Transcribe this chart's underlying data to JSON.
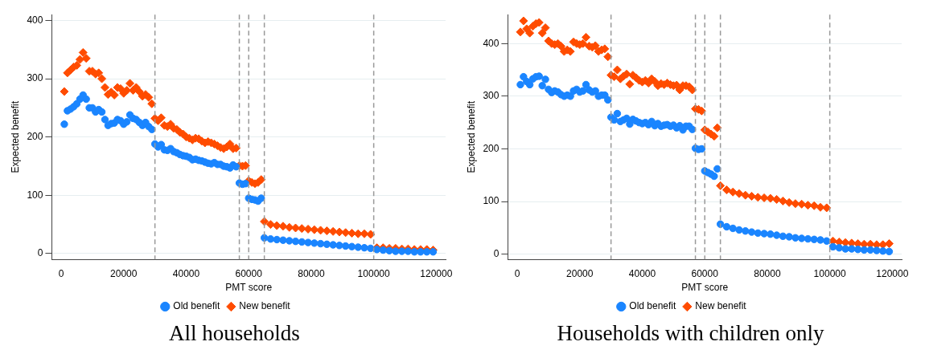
{
  "chart_data": [
    {
      "type": "scatter",
      "title": "All households",
      "xlabel": "PMT score",
      "ylabel": "Expected benefit",
      "xlim": [
        -3000,
        123000
      ],
      "xticks": [
        0,
        20000,
        40000,
        60000,
        80000,
        100000,
        120000
      ],
      "ylim": [
        -10,
        410
      ],
      "yticks": [
        0,
        100,
        200,
        300,
        400
      ],
      "grid": "y",
      "legend": "bottom",
      "x": [
        1000,
        2000,
        3000,
        4000,
        5000,
        6000,
        7000,
        8000,
        9000,
        10000,
        11000,
        12000,
        13000,
        14000,
        15000,
        16000,
        17000,
        18000,
        19000,
        20000,
        21000,
        22000,
        23000,
        24000,
        25000,
        26000,
        27000,
        28000,
        29000,
        30000,
        31000,
        32000,
        33000,
        34000,
        35000,
        36000,
        37000,
        38000,
        39000,
        40000,
        41000,
        42000,
        43000,
        44000,
        45000,
        46000,
        47000,
        48000,
        49000,
        50000,
        51000,
        52000,
        53000,
        54000,
        55000,
        56000,
        57000,
        58000,
        59000,
        60000,
        61000,
        62000,
        63000,
        64000,
        65000,
        67000,
        69000,
        71000,
        73000,
        75000,
        77000,
        79000,
        81000,
        83000,
        85000,
        87000,
        89000,
        91000,
        93000,
        95000,
        97000,
        99000,
        101000,
        103000,
        105000,
        107000,
        109000,
        111000,
        113000,
        115000,
        117000,
        119000
      ],
      "ref_lines": [
        {
          "axis": "x",
          "value": 30000,
          "color": "#999999",
          "line_style": "dashed"
        },
        {
          "axis": "x",
          "value": 57000,
          "color": "#999999",
          "line_style": "dashed"
        },
        {
          "axis": "x",
          "value": 60000,
          "color": "#999999",
          "line_style": "dashed"
        },
        {
          "axis": "x",
          "value": 65000,
          "color": "#999999",
          "line_style": "dashed"
        },
        {
          "axis": "x",
          "value": 100000,
          "color": "#999999",
          "line_style": "dashed"
        }
      ],
      "series": [
        {
          "name": "Old benefit",
          "color": "#1a85ff",
          "marker": "circle",
          "values": [
            222,
            245,
            248,
            252,
            257,
            265,
            272,
            265,
            250,
            250,
            243,
            247,
            243,
            230,
            220,
            223,
            224,
            230,
            228,
            222,
            226,
            238,
            232,
            230,
            225,
            220,
            225,
            218,
            213,
            188,
            183,
            187,
            178,
            177,
            180,
            175,
            173,
            170,
            168,
            167,
            165,
            161,
            162,
            160,
            159,
            157,
            155,
            154,
            156,
            153,
            153,
            150,
            149,
            147,
            152,
            149,
            121,
            119,
            120,
            95,
            93,
            92,
            90,
            95,
            27,
            25,
            24,
            23,
            22,
            21,
            20,
            19,
            18,
            17,
            16,
            15,
            14,
            13,
            12,
            11,
            10,
            9,
            7,
            6,
            5,
            4,
            4,
            4,
            3,
            3,
            3,
            3
          ]
        },
        {
          "name": "New benefit",
          "color": "#ff4c00",
          "marker": "diamond",
          "values": [
            278,
            310,
            315,
            320,
            323,
            333,
            345,
            335,
            313,
            313,
            308,
            310,
            300,
            285,
            273,
            277,
            272,
            285,
            283,
            275,
            280,
            292,
            280,
            285,
            278,
            270,
            273,
            268,
            257,
            232,
            228,
            233,
            220,
            218,
            222,
            215,
            213,
            208,
            205,
            200,
            198,
            195,
            198,
            197,
            193,
            190,
            192,
            190,
            188,
            185,
            182,
            180,
            183,
            188,
            180,
            181,
            151,
            150,
            151,
            125,
            122,
            120,
            122,
            127,
            55,
            50,
            48,
            47,
            45,
            44,
            43,
            42,
            41,
            40,
            39,
            38,
            37,
            36,
            35,
            34,
            34,
            33,
            10,
            10,
            9,
            9,
            8,
            8,
            7,
            7,
            7,
            6
          ]
        }
      ]
    },
    {
      "type": "scatter",
      "title": "Households with children only",
      "xlabel": "PMT score",
      "ylabel": "Expected benefit",
      "xlim": [
        -3000,
        123000
      ],
      "xticks": [
        0,
        20000,
        40000,
        60000,
        80000,
        100000,
        120000
      ],
      "ylim": [
        -10,
        455
      ],
      "yticks": [
        0,
        100,
        200,
        300,
        400
      ],
      "grid": "y",
      "legend": "bottom",
      "x": [
        1000,
        2000,
        3000,
        4000,
        5000,
        6000,
        7000,
        8000,
        9000,
        10000,
        11000,
        12000,
        13000,
        14000,
        15000,
        16000,
        17000,
        18000,
        19000,
        20000,
        21000,
        22000,
        23000,
        24000,
        25000,
        26000,
        27000,
        28000,
        29000,
        30000,
        31000,
        32000,
        33000,
        34000,
        35000,
        36000,
        37000,
        38000,
        39000,
        40000,
        41000,
        42000,
        43000,
        44000,
        45000,
        46000,
        47000,
        48000,
        49000,
        50000,
        51000,
        52000,
        53000,
        54000,
        55000,
        56000,
        57000,
        58000,
        59000,
        60000,
        61000,
        62000,
        63000,
        64000,
        65000,
        67000,
        69000,
        71000,
        73000,
        75000,
        77000,
        79000,
        81000,
        83000,
        85000,
        87000,
        89000,
        91000,
        93000,
        95000,
        97000,
        99000,
        101000,
        103000,
        105000,
        107000,
        109000,
        111000,
        113000,
        115000,
        117000,
        119000
      ],
      "ref_lines": [
        {
          "axis": "x",
          "value": 30000,
          "color": "#999999",
          "line_style": "dashed"
        },
        {
          "axis": "x",
          "value": 57000,
          "color": "#999999",
          "line_style": "dashed"
        },
        {
          "axis": "x",
          "value": 60000,
          "color": "#999999",
          "line_style": "dashed"
        },
        {
          "axis": "x",
          "value": 65000,
          "color": "#999999",
          "line_style": "dashed"
        },
        {
          "axis": "x",
          "value": 100000,
          "color": "#999999",
          "line_style": "dashed"
        }
      ],
      "series": [
        {
          "name": "Old benefit",
          "color": "#1a85ff",
          "marker": "circle",
          "values": [
            322,
            337,
            328,
            322,
            333,
            337,
            338,
            320,
            332,
            313,
            307,
            310,
            308,
            303,
            300,
            302,
            300,
            310,
            313,
            308,
            310,
            322,
            312,
            308,
            310,
            300,
            302,
            302,
            293,
            260,
            255,
            267,
            252,
            255,
            258,
            247,
            256,
            253,
            250,
            248,
            250,
            246,
            252,
            244,
            248,
            243,
            245,
            246,
            243,
            245,
            240,
            244,
            236,
            243,
            243,
            237,
            201,
            199,
            200,
            158,
            155,
            152,
            148,
            162,
            57,
            52,
            49,
            46,
            44,
            42,
            40,
            39,
            38,
            36,
            34,
            33,
            31,
            30,
            29,
            28,
            27,
            25,
            14,
            12,
            10,
            10,
            9,
            8,
            8,
            7,
            6,
            5
          ]
        },
        {
          "name": "New benefit",
          "color": "#ff4c00",
          "marker": "diamond",
          "values": [
            422,
            443,
            428,
            420,
            433,
            438,
            440,
            420,
            430,
            405,
            400,
            398,
            400,
            395,
            385,
            388,
            385,
            403,
            400,
            398,
            400,
            412,
            395,
            393,
            396,
            385,
            388,
            390,
            375,
            340,
            337,
            350,
            333,
            338,
            342,
            323,
            340,
            335,
            330,
            327,
            330,
            325,
            333,
            328,
            320,
            324,
            322,
            325,
            322,
            320,
            321,
            312,
            320,
            320,
            318,
            312,
            276,
            275,
            272,
            236,
            232,
            228,
            224,
            240,
            130,
            122,
            118,
            115,
            112,
            110,
            108,
            107,
            106,
            104,
            101,
            98,
            96,
            95,
            93,
            92,
            89,
            88,
            25,
            23,
            22,
            21,
            20,
            19,
            19,
            18,
            18,
            20
          ]
        }
      ]
    }
  ]
}
